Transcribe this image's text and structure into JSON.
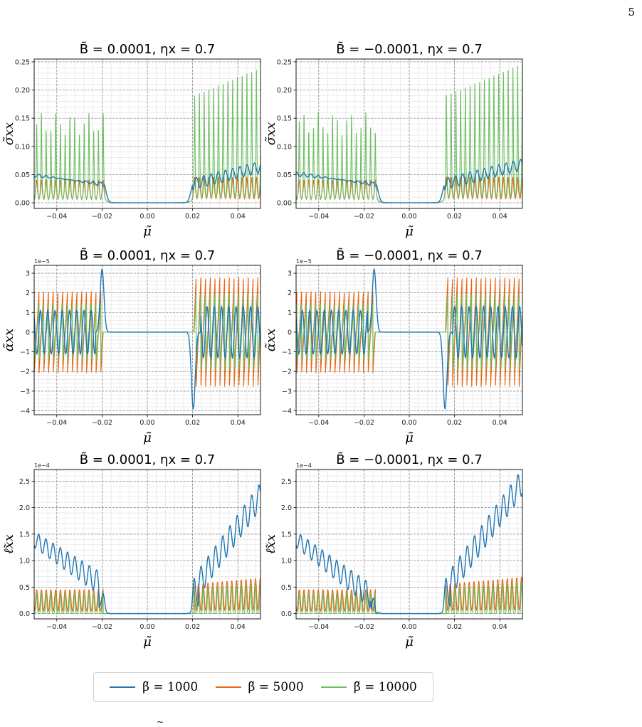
{
  "page_number": "5",
  "caption_fragment": "~",
  "colors": {
    "beta_1000": "#1f77b4",
    "beta_5000": "#e8650f",
    "beta_10000": "#6dbf62",
    "grid_major": "#7f7f7f",
    "grid_minor": "#e0e0e0"
  },
  "legend": {
    "items": [
      {
        "label": "β̃ = 1000",
        "color_key": "beta_1000"
      },
      {
        "label": "β̃ = 5000",
        "color_key": "beta_5000"
      },
      {
        "label": "β̃ = 10000",
        "color_key": "beta_10000"
      }
    ]
  },
  "chart_data": [
    {
      "type": "line",
      "id": "sigma_pos",
      "title": "B̃ = 0.0001,  ηx = 0.7",
      "xlabel": "μ̃",
      "ylabel": "σ̃xx",
      "xlim": [
        -0.05,
        0.05
      ],
      "ylim": [
        -0.01,
        0.255
      ],
      "xticks": [
        -0.04,
        -0.02,
        0.0,
        0.02,
        0.04
      ],
      "xticklabels": [
        "−0.04",
        "−0.02",
        "0.00",
        "0.02",
        "0.04"
      ],
      "yticks": [
        0.0,
        0.05,
        0.1,
        0.15,
        0.2,
        0.25
      ],
      "yticklabels": [
        "0.00",
        "0.05",
        "0.10",
        "0.15",
        "0.20",
        "0.25"
      ],
      "y_offset_label": "",
      "grid": true,
      "kind": "sigma",
      "B_sign": 1,
      "series": [
        {
          "name": "β̃ = 1000",
          "color_key": "beta_1000"
        },
        {
          "name": "β̃ = 5000",
          "color_key": "beta_5000"
        },
        {
          "name": "β̃ = 10000",
          "color_key": "beta_10000"
        }
      ]
    },
    {
      "type": "line",
      "id": "sigma_neg",
      "title": "B̃ = −0.0001,  ηx = 0.7",
      "xlabel": "μ̃",
      "ylabel": "σ̃xx",
      "xlim": [
        -0.05,
        0.05
      ],
      "ylim": [
        -0.01,
        0.255
      ],
      "xticks": [
        -0.04,
        -0.02,
        0.0,
        0.02,
        0.04
      ],
      "xticklabels": [
        "−0.04",
        "−0.02",
        "0.00",
        "0.02",
        "0.04"
      ],
      "yticks": [
        0.0,
        0.05,
        0.1,
        0.15,
        0.2,
        0.25
      ],
      "yticklabels": [
        "0.00",
        "0.05",
        "0.10",
        "0.15",
        "0.20",
        "0.25"
      ],
      "y_offset_label": "",
      "grid": true,
      "kind": "sigma",
      "B_sign": -1,
      "series": [
        {
          "name": "β̃ = 1000",
          "color_key": "beta_1000"
        },
        {
          "name": "β̃ = 5000",
          "color_key": "beta_5000"
        },
        {
          "name": "β̃ = 10000",
          "color_key": "beta_10000"
        }
      ]
    },
    {
      "type": "line",
      "id": "alpha_pos",
      "title": "B̃ = 0.0001,  ηx = 0.7",
      "xlabel": "μ̃",
      "ylabel": "α̃xx",
      "xlim": [
        -0.05,
        0.05
      ],
      "ylim": [
        -4.2,
        3.4
      ],
      "xticks": [
        -0.04,
        -0.02,
        0.0,
        0.02,
        0.04
      ],
      "xticklabels": [
        "−0.04",
        "−0.02",
        "0.00",
        "0.02",
        "0.04"
      ],
      "yticks": [
        -4,
        -3,
        -2,
        -1,
        0,
        1,
        2,
        3
      ],
      "yticklabels": [
        "−4",
        "−3",
        "−2",
        "−1",
        "0",
        "1",
        "2",
        "3"
      ],
      "y_offset_label": "1e−5",
      "grid": true,
      "kind": "alpha",
      "B_sign": 1,
      "series": [
        {
          "name": "β̃ = 1000",
          "color_key": "beta_1000"
        },
        {
          "name": "β̃ = 5000",
          "color_key": "beta_5000"
        },
        {
          "name": "β̃ = 10000",
          "color_key": "beta_10000"
        }
      ]
    },
    {
      "type": "line",
      "id": "alpha_neg",
      "title": "B̃ = −0.0001,  ηx = 0.7",
      "xlabel": "μ̃",
      "ylabel": "α̃xx",
      "xlim": [
        -0.05,
        0.05
      ],
      "ylim": [
        -4.2,
        3.4
      ],
      "xticks": [
        -0.04,
        -0.02,
        0.0,
        0.02,
        0.04
      ],
      "xticklabels": [
        "−0.04",
        "−0.02",
        "0.00",
        "0.02",
        "0.04"
      ],
      "yticks": [
        -4,
        -3,
        -2,
        -1,
        0,
        1,
        2,
        3
      ],
      "yticklabels": [
        "−4",
        "−3",
        "−2",
        "−1",
        "0",
        "1",
        "2",
        "3"
      ],
      "y_offset_label": "1e−5",
      "grid": true,
      "kind": "alpha",
      "B_sign": -1,
      "series": [
        {
          "name": "β̃ = 1000",
          "color_key": "beta_1000"
        },
        {
          "name": "β̃ = 5000",
          "color_key": "beta_5000"
        },
        {
          "name": "β̃ = 10000",
          "color_key": "beta_10000"
        }
      ]
    },
    {
      "type": "line",
      "id": "ell_pos",
      "title": "B̃ = 0.0001,  ηx = 0.7",
      "xlabel": "μ̃",
      "ylabel": "ℓ̃xx",
      "xlim": [
        -0.05,
        0.05
      ],
      "ylim": [
        -0.1,
        2.72
      ],
      "xticks": [
        -0.04,
        -0.02,
        0.0,
        0.02,
        0.04
      ],
      "xticklabels": [
        "−0.04",
        "−0.02",
        "0.00",
        "0.02",
        "0.04"
      ],
      "yticks": [
        0.0,
        0.5,
        1.0,
        1.5,
        2.0,
        2.5
      ],
      "yticklabels": [
        "0.0",
        "0.5",
        "1.0",
        "1.5",
        "2.0",
        "2.5"
      ],
      "y_offset_label": "1e−4",
      "grid": true,
      "kind": "ell",
      "B_sign": 1,
      "series": [
        {
          "name": "β̃ = 1000",
          "color_key": "beta_1000"
        },
        {
          "name": "β̃ = 5000",
          "color_key": "beta_5000"
        },
        {
          "name": "β̃ = 10000",
          "color_key": "beta_10000"
        }
      ]
    },
    {
      "type": "line",
      "id": "ell_neg",
      "title": "B̃ = −0.0001,  ηx = 0.7",
      "xlabel": "μ̃",
      "ylabel": "ℓ̃xx",
      "xlim": [
        -0.05,
        0.05
      ],
      "ylim": [
        -0.1,
        2.72
      ],
      "xticks": [
        -0.04,
        -0.02,
        0.0,
        0.02,
        0.04
      ],
      "xticklabels": [
        "−0.04",
        "−0.02",
        "0.00",
        "0.02",
        "0.04"
      ],
      "yticks": [
        0.0,
        0.5,
        1.0,
        1.5,
        2.0,
        2.5
      ],
      "yticklabels": [
        "0.0",
        "0.5",
        "1.0",
        "1.5",
        "2.0",
        "2.5"
      ],
      "y_offset_label": "1e−4",
      "grid": true,
      "kind": "ell",
      "B_sign": -1,
      "series": [
        {
          "name": "β̃ = 1000",
          "color_key": "beta_1000"
        },
        {
          "name": "β̃ = 5000",
          "color_key": "beta_5000"
        },
        {
          "name": "β̃ = 10000",
          "color_key": "beta_10000"
        }
      ]
    }
  ]
}
